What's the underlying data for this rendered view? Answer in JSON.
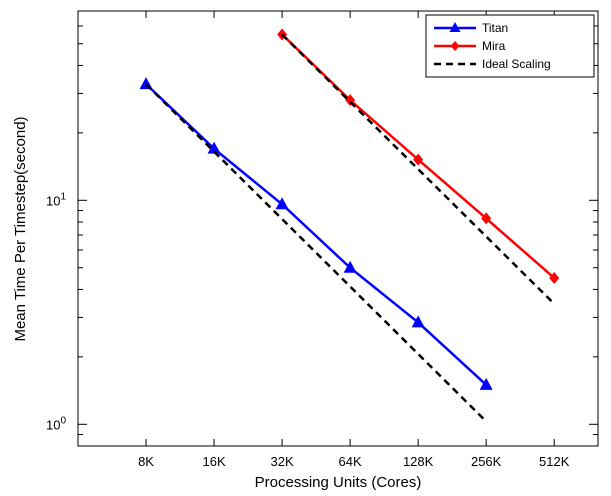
{
  "chart_data": {
    "type": "line",
    "xscale": "log2",
    "yscale": "log",
    "xlabel": "Processing Units (Cores)",
    "ylabel": "Mean Time Per Timestep(second)",
    "x_ticks": [
      "8K",
      "16K",
      "32K",
      "64K",
      "128K",
      "256K",
      "512K"
    ],
    "y_ticks": [
      {
        "value": 1,
        "base": "10",
        "exp": "0"
      },
      {
        "value": 10,
        "base": "10",
        "exp": "1"
      }
    ],
    "xlim": [
      4,
      800
    ],
    "ylim": [
      0.8,
      70
    ],
    "legend_position": "top-right",
    "series": [
      {
        "name": "Titan",
        "color": "#0000ff",
        "marker": "triangle",
        "x": [
          8,
          16,
          32,
          64,
          128,
          256
        ],
        "y": [
          33,
          17,
          9.6,
          5.0,
          2.85,
          1.5
        ]
      },
      {
        "name": "Mira",
        "color": "#ff0000",
        "marker": "diamond",
        "x": [
          32,
          64,
          128,
          256,
          512
        ],
        "y": [
          55,
          28,
          15.2,
          8.3,
          4.5
        ]
      },
      {
        "name": "Ideal Scaling",
        "color": "#000000",
        "style": "dashed",
        "segments": [
          {
            "x": [
              8,
              256
            ],
            "y": [
              33,
              1.03
            ]
          },
          {
            "x": [
              32,
              512
            ],
            "y": [
              55,
              3.45
            ]
          }
        ]
      }
    ]
  }
}
